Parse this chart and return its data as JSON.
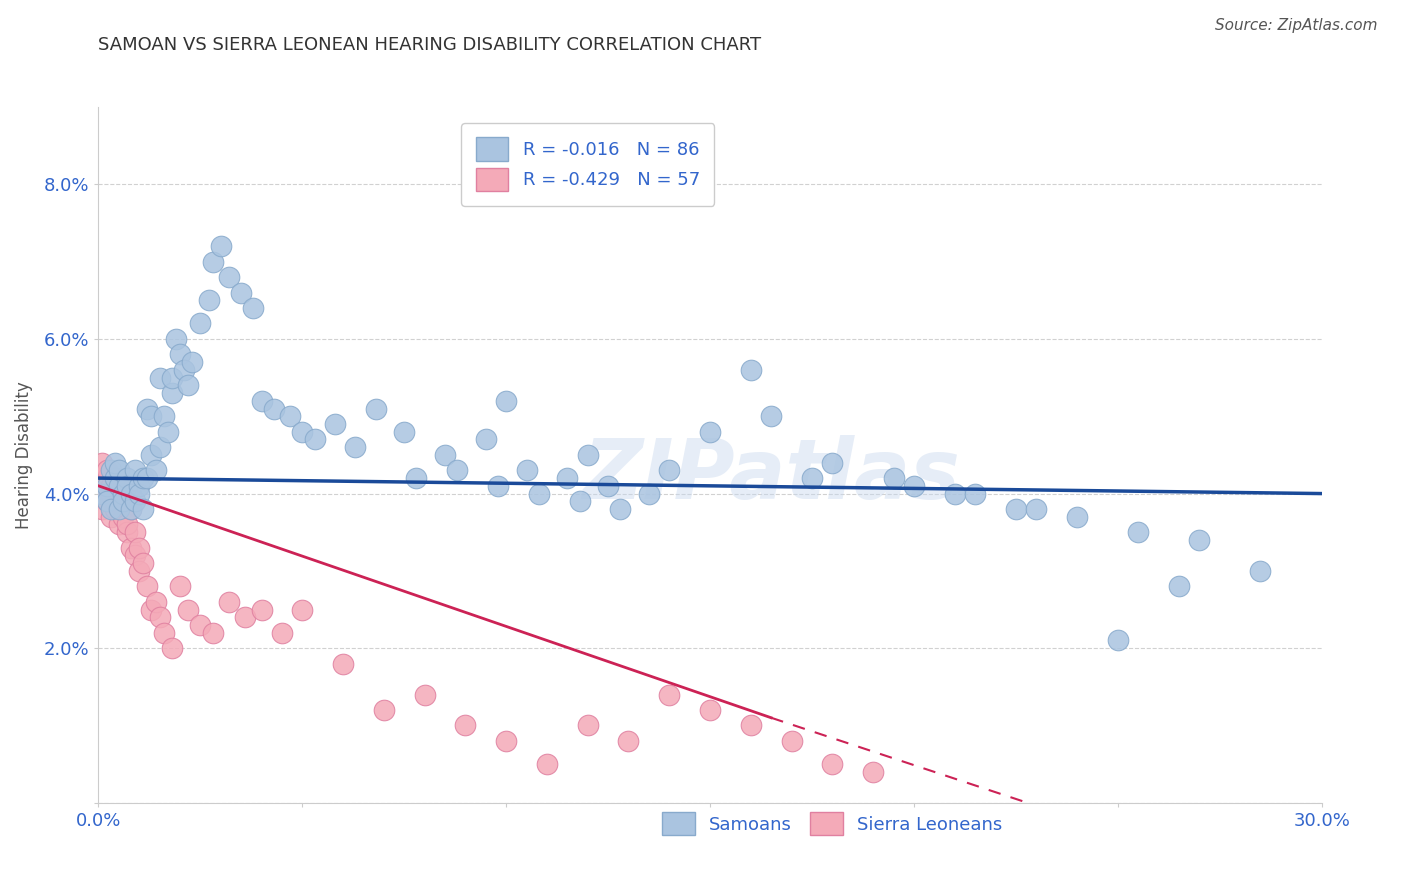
{
  "title": "SAMOAN VS SIERRA LEONEAN HEARING DISABILITY CORRELATION CHART",
  "source": "Source: ZipAtlas.com",
  "ylabel": "Hearing Disability",
  "xlim": [
    0.0,
    0.3
  ],
  "ylim": [
    0.0,
    0.09
  ],
  "xtick_vals": [
    0.0,
    0.05,
    0.1,
    0.15,
    0.2,
    0.25,
    0.3
  ],
  "xtick_labels": [
    "0.0%",
    "",
    "",
    "",
    "",
    "",
    "30.0%"
  ],
  "ytick_vals": [
    0.0,
    0.02,
    0.04,
    0.06,
    0.08
  ],
  "ytick_labels": [
    "",
    "2.0%",
    "4.0%",
    "6.0%",
    "8.0%"
  ],
  "grid_color": "#cccccc",
  "background_color": "#ffffff",
  "samoans_color": "#aac4e0",
  "samoans_edge_color": "#88aacc",
  "sierra_leoneans_color": "#f4aab8",
  "sierra_leoneans_edge_color": "#e080a0",
  "samoans_line_color": "#1a4a99",
  "sierra_leoneans_line_color": "#cc2255",
  "axis_label_color": "#3366cc",
  "title_color": "#333333",
  "title_fontsize": 13,
  "watermark": "ZIPatlas",
  "legend_box_color": "#cccccc",
  "note_color": "#777777",
  "samoans_x": [
    0.001,
    0.002,
    0.002,
    0.003,
    0.003,
    0.004,
    0.004,
    0.005,
    0.005,
    0.005,
    0.006,
    0.006,
    0.007,
    0.007,
    0.008,
    0.008,
    0.009,
    0.009,
    0.01,
    0.01,
    0.011,
    0.011,
    0.012,
    0.012,
    0.013,
    0.013,
    0.014,
    0.015,
    0.015,
    0.016,
    0.017,
    0.018,
    0.018,
    0.019,
    0.02,
    0.021,
    0.022,
    0.023,
    0.025,
    0.027,
    0.028,
    0.03,
    0.032,
    0.035,
    0.038,
    0.04,
    0.043,
    0.047,
    0.05,
    0.053,
    0.058,
    0.063,
    0.068,
    0.075,
    0.085,
    0.095,
    0.105,
    0.115,
    0.125,
    0.135,
    0.15,
    0.165,
    0.18,
    0.195,
    0.21,
    0.225,
    0.24,
    0.255,
    0.27,
    0.285,
    0.1,
    0.12,
    0.14,
    0.16,
    0.175,
    0.2,
    0.215,
    0.23,
    0.25,
    0.265,
    0.078,
    0.088,
    0.098,
    0.108,
    0.118,
    0.128
  ],
  "samoans_y": [
    0.04,
    0.041,
    0.039,
    0.043,
    0.038,
    0.042,
    0.044,
    0.041,
    0.043,
    0.038,
    0.04,
    0.039,
    0.042,
    0.041,
    0.04,
    0.038,
    0.043,
    0.039,
    0.041,
    0.04,
    0.038,
    0.042,
    0.051,
    0.042,
    0.045,
    0.05,
    0.043,
    0.046,
    0.055,
    0.05,
    0.048,
    0.053,
    0.055,
    0.06,
    0.058,
    0.056,
    0.054,
    0.057,
    0.062,
    0.065,
    0.07,
    0.072,
    0.068,
    0.066,
    0.064,
    0.052,
    0.051,
    0.05,
    0.048,
    0.047,
    0.049,
    0.046,
    0.051,
    0.048,
    0.045,
    0.047,
    0.043,
    0.042,
    0.041,
    0.04,
    0.048,
    0.05,
    0.044,
    0.042,
    0.04,
    0.038,
    0.037,
    0.035,
    0.034,
    0.03,
    0.052,
    0.045,
    0.043,
    0.056,
    0.042,
    0.041,
    0.04,
    0.038,
    0.021,
    0.028,
    0.042,
    0.043,
    0.041,
    0.04,
    0.039,
    0.038
  ],
  "sierra_x": [
    0.0,
    0.0,
    0.001,
    0.001,
    0.001,
    0.002,
    0.002,
    0.002,
    0.003,
    0.003,
    0.003,
    0.004,
    0.004,
    0.004,
    0.005,
    0.005,
    0.005,
    0.006,
    0.006,
    0.007,
    0.007,
    0.008,
    0.008,
    0.009,
    0.009,
    0.01,
    0.01,
    0.011,
    0.012,
    0.013,
    0.014,
    0.015,
    0.016,
    0.018,
    0.02,
    0.022,
    0.025,
    0.028,
    0.032,
    0.036,
    0.04,
    0.045,
    0.05,
    0.06,
    0.07,
    0.08,
    0.09,
    0.1,
    0.11,
    0.12,
    0.13,
    0.14,
    0.15,
    0.16,
    0.17,
    0.18,
    0.19
  ],
  "sierra_y": [
    0.04,
    0.042,
    0.038,
    0.041,
    0.044,
    0.039,
    0.042,
    0.043,
    0.037,
    0.04,
    0.041,
    0.038,
    0.042,
    0.039,
    0.036,
    0.04,
    0.041,
    0.038,
    0.037,
    0.035,
    0.036,
    0.033,
    0.038,
    0.032,
    0.035,
    0.03,
    0.033,
    0.031,
    0.028,
    0.025,
    0.026,
    0.024,
    0.022,
    0.02,
    0.028,
    0.025,
    0.023,
    0.022,
    0.026,
    0.024,
    0.025,
    0.022,
    0.025,
    0.018,
    0.012,
    0.014,
    0.01,
    0.008,
    0.005,
    0.01,
    0.008,
    0.014,
    0.012,
    0.01,
    0.008,
    0.005,
    0.004
  ]
}
